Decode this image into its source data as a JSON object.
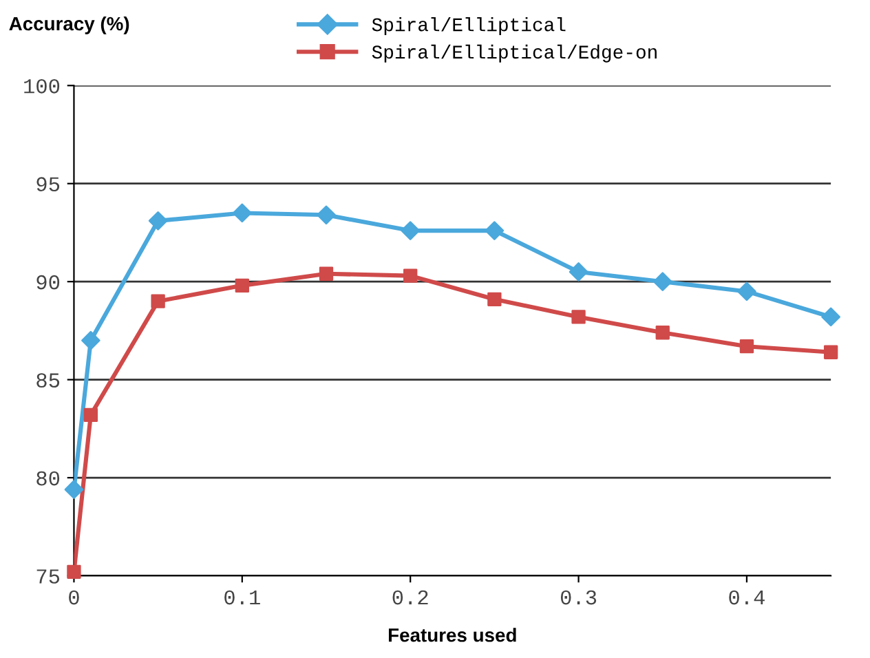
{
  "chart_data": {
    "type": "line",
    "ylabel": "Accuracy (%)",
    "xlabel": "Features used",
    "x": [
      0,
      0.01,
      0.05,
      0.1,
      0.15,
      0.2,
      0.25,
      0.3,
      0.35,
      0.4,
      0.45
    ],
    "series": [
      {
        "name": "Spiral/Elliptical",
        "color": "#4aa8dc",
        "marker": "diamond",
        "values": [
          79.4,
          87.0,
          93.1,
          93.5,
          93.4,
          92.6,
          92.6,
          90.5,
          90.0,
          89.5,
          88.2
        ]
      },
      {
        "name": "Spiral/Elliptical/Edge-on",
        "color": "#d04a4a",
        "marker": "square",
        "values": [
          75.2,
          83.2,
          89.0,
          89.8,
          90.4,
          90.3,
          89.1,
          88.2,
          87.4,
          86.7,
          86.4
        ]
      }
    ],
    "xlim": [
      0,
      0.45
    ],
    "xticks": [
      0,
      0.1,
      0.2,
      0.3,
      0.4
    ],
    "ylim": [
      75,
      100
    ],
    "yticks": [
      75,
      80,
      85,
      90,
      95,
      100
    ],
    "grid": "y",
    "legend": "top",
    "line_style": "solid"
  }
}
